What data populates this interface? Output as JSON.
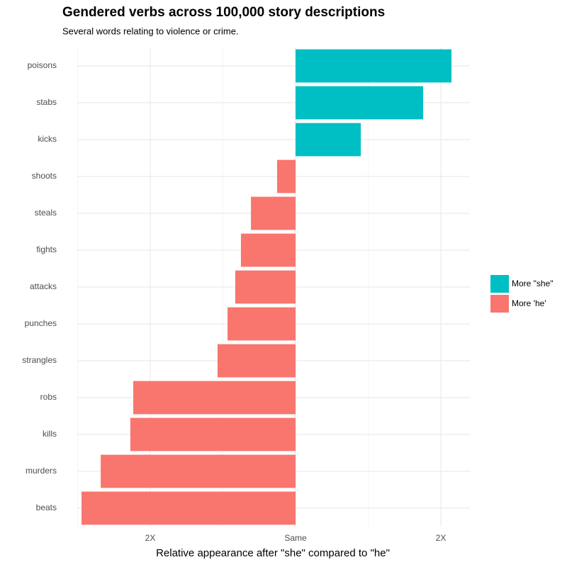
{
  "chart_data": {
    "type": "bar",
    "orientation": "horizontal",
    "title": "Gendered verbs across 100,000 story descriptions",
    "subtitle": "Several words relating to violence or crime.",
    "x_label": "Relative appearance after \"she\" compared to \"he\"",
    "categories": [
      "poisons",
      "stabs",
      "kicks",
      "shoots",
      "steals",
      "fights",
      "attacks",
      "punches",
      "strangles",
      "robs",
      "kills",
      "murders",
      "beats"
    ],
    "series": [
      {
        "name": "More \"she\"",
        "color": "#00bfc4",
        "values": [
          1.073,
          0.878,
          0.449,
          null,
          null,
          null,
          null,
          null,
          null,
          null,
          null,
          null,
          null
        ]
      },
      {
        "name": "More 'he'",
        "color": "#f8766d",
        "values": [
          null,
          null,
          null,
          -0.127,
          -0.307,
          -0.376,
          -0.415,
          -0.468,
          -0.537,
          -1.117,
          -1.137,
          -1.341,
          -1.473
        ]
      }
    ],
    "xlim": [
      -1.5,
      1.2
    ],
    "xticks": [
      {
        "value": -1,
        "label": "2X"
      },
      {
        "value": 0,
        "label": "Same"
      },
      {
        "value": 1,
        "label": "2X"
      }
    ],
    "minor_xticks": [
      -1.5,
      -0.5,
      0.5
    ],
    "grid": true,
    "legend": "right"
  }
}
